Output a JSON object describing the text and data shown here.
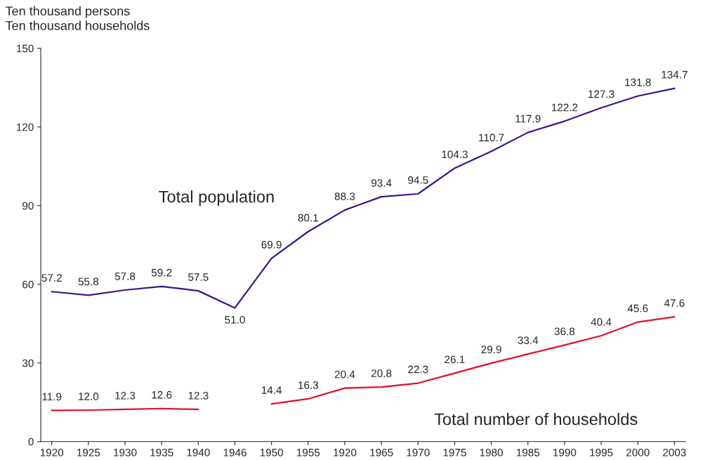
{
  "chart_data": {
    "type": "line",
    "ylabel": "Ten thousand persons\nTen thousand households",
    "categories": [
      "1920",
      "1925",
      "1930",
      "1935",
      "1940",
      "1946",
      "1950",
      "1955",
      "1920",
      "1965",
      "1970",
      "1975",
      "1980",
      "1985",
      "1990",
      "1995",
      "2000",
      "2003"
    ],
    "series": [
      {
        "name": "Total population",
        "color": "#3d1485",
        "values": [
          57.2,
          55.8,
          57.8,
          59.2,
          57.5,
          51.0,
          69.9,
          80.1,
          88.3,
          93.4,
          94.5,
          104.3,
          110.7,
          117.9,
          122.2,
          127.3,
          131.8,
          134.7
        ],
        "value_labels": [
          "57.2",
          "55.8",
          "57.8",
          "59.2",
          "57.5",
          "51.0",
          "69.9",
          "80.1",
          "88.3",
          "93.4",
          "94.5",
          "104.3",
          "110.7",
          "117.9",
          "122.2",
          "127.3",
          "131.8",
          "134.7"
        ]
      },
      {
        "name": "Total number of households",
        "color": "#e0102a",
        "values": [
          11.9,
          12.0,
          12.3,
          12.6,
          12.3,
          null,
          14.4,
          16.3,
          20.4,
          20.8,
          22.3,
          26.1,
          29.9,
          33.4,
          36.8,
          40.4,
          45.6,
          47.6
        ],
        "value_labels": [
          "11.9",
          "12.0",
          "12.3",
          "12.6",
          "12.3",
          null,
          "14.4",
          "16.3",
          "20.4",
          "20.8",
          "22.3",
          "26.1",
          "29.9",
          "33.4",
          "36.8",
          "40.4",
          "45.6",
          "47.6"
        ]
      }
    ],
    "ylim": [
      0,
      150
    ],
    "yticks": [
      0,
      30,
      60,
      90,
      120,
      150
    ],
    "grid": false,
    "legend": false,
    "marker": "none",
    "line_style": "solid"
  }
}
